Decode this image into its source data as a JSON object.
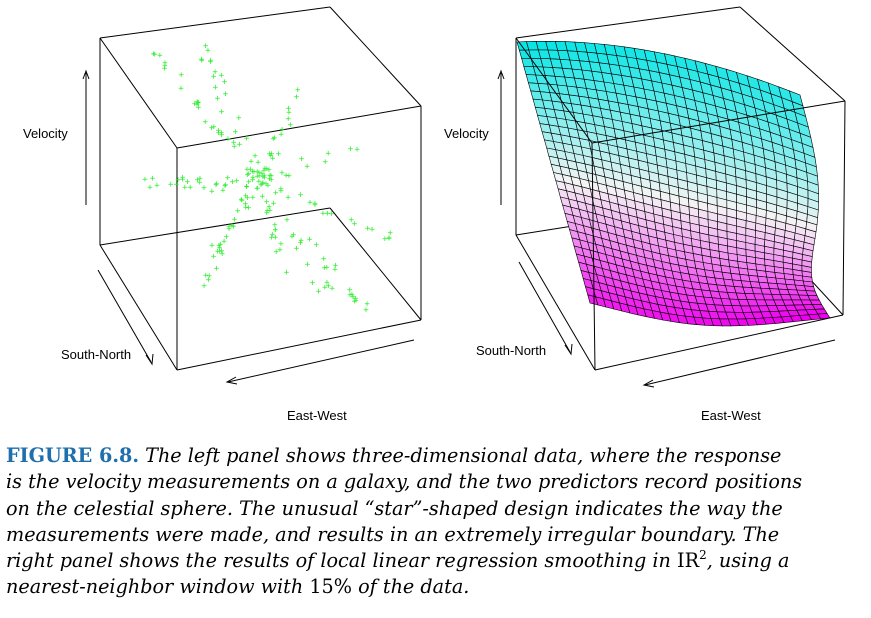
{
  "figure": {
    "left_panel": {
      "axis_labels": {
        "z": "Velocity",
        "y": "South-North",
        "x": "East-West"
      },
      "point_marker": "+",
      "point_color": "#33ee33"
    },
    "right_panel": {
      "axis_labels": {
        "z": "Velocity",
        "y": "South-North",
        "x": "East-West"
      },
      "surface_colors": {
        "high": "#00e5e5",
        "mid": "#f4f4f4",
        "low": "#ee00ee"
      }
    },
    "caption": {
      "label": "FIGURE 6.8.",
      "lines": [
        "The left panel shows three-dimensional data, where the response",
        "is the velocity measurements on a galaxy, and the two predictors record positions",
        "on the celestial sphere. The unusual “star”-shaped design indicates the way the",
        "measurements were made, and results in an extremely irregular boundary. The",
        "right panel shows the results of local linear regression smoothing in"
      ],
      "line5_symbol": "IR",
      "line5_exponent": "2",
      "line5_tail": ", using a",
      "line6_start": "nearest-neighbor window with",
      "line6_percent": "15%",
      "line6_end": "of the data."
    }
  }
}
